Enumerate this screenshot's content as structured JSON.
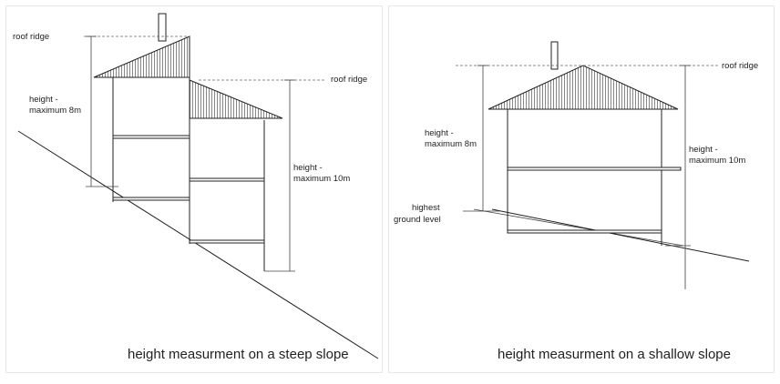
{
  "left": {
    "roof_ridge_top": "roof ridge",
    "roof_ridge_lower": "roof ridge",
    "height_8m_line1": "height -",
    "height_8m_line2": "maximum 8m",
    "height_10m_line1": "height -",
    "height_10m_line2": "maximum 10m",
    "caption": "height measurment on a steep slope"
  },
  "right": {
    "roof_ridge": "roof ridge",
    "height_8m_line1": "height -",
    "height_8m_line2": "maximum 8m",
    "height_10m_line1": "height -",
    "height_10m_line2": "maximum 10m",
    "ground_line1": "highest",
    "ground_line2": "ground level",
    "caption": "height measurment on a shallow slope"
  }
}
